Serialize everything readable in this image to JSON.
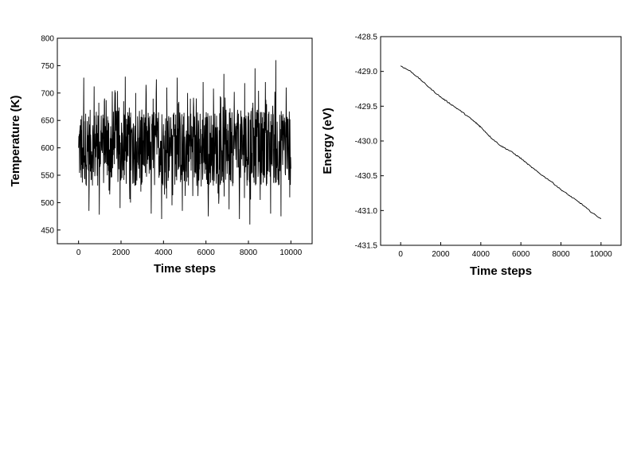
{
  "chart_data": [
    {
      "type": "line",
      "title": "",
      "xlabel": "Time steps",
      "ylabel": "Temperature (K)",
      "xlim": [
        -1000,
        11000
      ],
      "ylim": [
        425,
        800
      ],
      "x_ticks": [
        0,
        2000,
        4000,
        6000,
        8000,
        10000
      ],
      "y_ticks": [
        450,
        500,
        550,
        600,
        650,
        700,
        750,
        800
      ],
      "x_tick_labels": [
        "0",
        "2000",
        "4000",
        "6000",
        "8000",
        "10000"
      ],
      "y_tick_labels": [
        "450",
        "500",
        "550",
        "600",
        "650",
        "700",
        "750",
        "800"
      ],
      "grid": false,
      "series": [
        {
          "x": [
            0,
            250,
            500,
            750,
            1000,
            1250,
            1500,
            1750,
            2000,
            2250,
            2500,
            2750,
            3000,
            3250,
            3500,
            3750,
            4000,
            4250,
            4500,
            4750,
            5000,
            5250,
            5500,
            5750,
            6000,
            6250,
            6500,
            6750,
            7000,
            7250,
            7500,
            7750,
            8000,
            8250,
            8500,
            8750,
            9000,
            9250,
            9500,
            9750,
            10000
          ],
          "y": [
            600,
            728,
            485,
            712,
            478,
            690,
            515,
            705,
            490,
            730,
            500,
            700,
            520,
            715,
            480,
            725,
            470,
            710,
            495,
            728,
            485,
            700,
            512,
            720,
            475,
            708,
            498,
            735,
            488,
            702,
            470,
            718,
            460,
            745,
            505,
            720,
            480,
            760,
            475,
            710,
            598
          ],
          "band": [
            530,
            670
          ]
        }
      ]
    },
    {
      "type": "line",
      "title": "",
      "xlabel": "Time steps",
      "ylabel": "Energy (eV)",
      "xlim": [
        -1000,
        11000
      ],
      "ylim": [
        -431.5,
        -428.5
      ],
      "x_ticks": [
        0,
        2000,
        4000,
        6000,
        8000,
        10000
      ],
      "y_ticks": [
        -431.5,
        -431.0,
        -430.5,
        -430.0,
        -429.5,
        -429.0,
        -428.5
      ],
      "x_tick_labels": [
        "0",
        "2000",
        "4000",
        "6000",
        "8000",
        "10000"
      ],
      "y_tick_labels": [
        "-431.5",
        "-431.0",
        "-430.5",
        "-430.0",
        "-429.5",
        "-429.0",
        "-428.5"
      ],
      "grid": false,
      "series": [
        {
          "x": [
            0,
            500,
            1000,
            1500,
            2000,
            2500,
            3000,
            3500,
            3800,
            4000,
            4500,
            5000,
            5500,
            6000,
            6500,
            7000,
            7500,
            8000,
            8500,
            9000,
            9500,
            10000
          ],
          "y": [
            -428.92,
            -429.0,
            -429.12,
            -429.25,
            -429.37,
            -429.47,
            -429.57,
            -429.68,
            -429.75,
            -429.8,
            -429.95,
            -430.07,
            -430.15,
            -430.25,
            -430.37,
            -430.48,
            -430.58,
            -430.7,
            -430.8,
            -430.9,
            -431.02,
            -431.12
          ]
        }
      ]
    }
  ]
}
